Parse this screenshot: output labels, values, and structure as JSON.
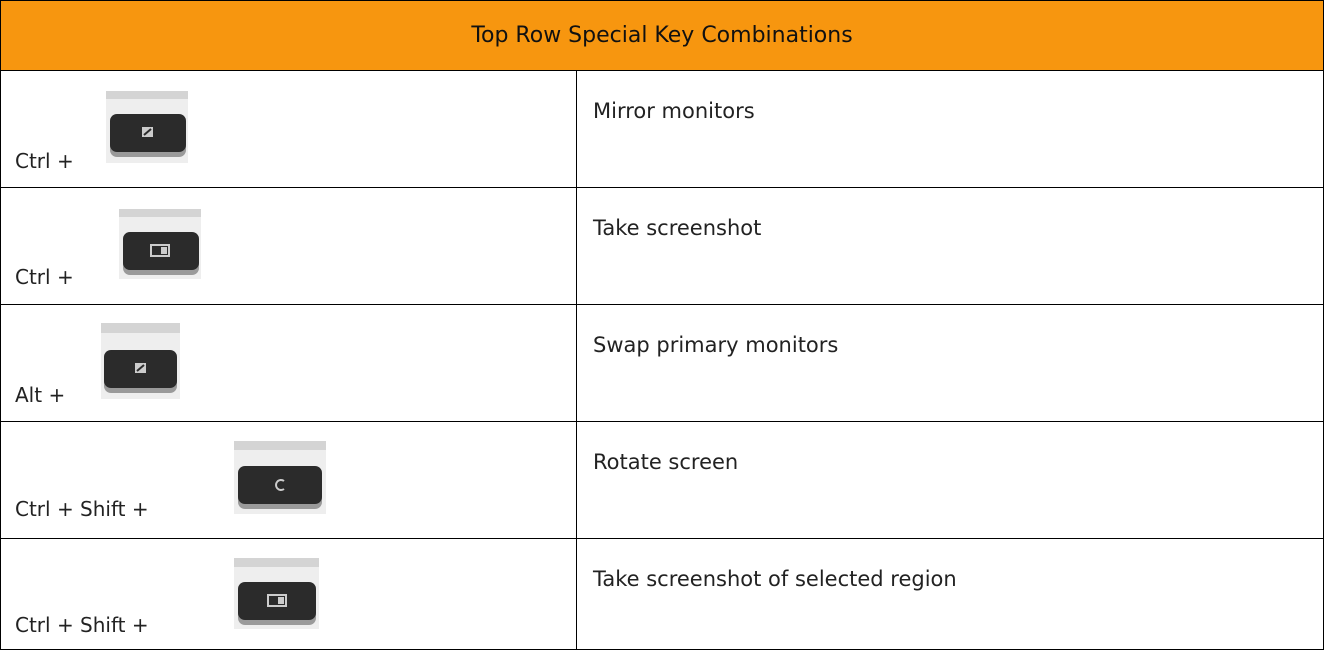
{
  "header": {
    "title": "Top Row Special Key Combinations"
  },
  "table": {
    "rows": [
      [
        "Ctrl +",
        "Mirror monitors"
      ],
      [
        "Ctrl +",
        "Take screenshot"
      ],
      [
        "Alt +",
        "Swap primary monitors"
      ],
      [
        "Ctrl + Shift +",
        "Rotate screen"
      ],
      [
        "Ctrl + Shift +",
        "Take screenshot of selected region"
      ]
    ]
  }
}
